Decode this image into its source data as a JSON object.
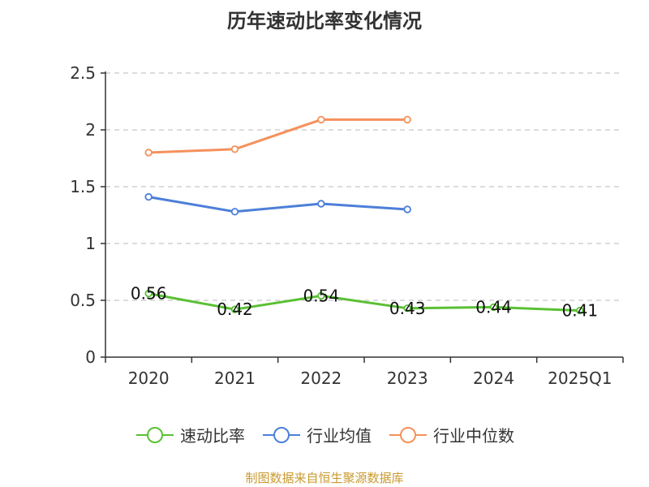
{
  "chart_data": {
    "type": "line",
    "title": "历年速动比率变化情况",
    "xlabel": "",
    "ylabel": "",
    "categories": [
      "2020",
      "2021",
      "2022",
      "2023",
      "2024",
      "2025Q1"
    ],
    "ylim": [
      0,
      2.5
    ],
    "y_ticks": [
      "0",
      "0.5",
      "1",
      "1.5",
      "2",
      "2.5"
    ],
    "grid": true,
    "legend_position": "bottom",
    "series": [
      {
        "name": "速动比率",
        "color": "#5ac034",
        "values": [
          0.56,
          0.42,
          0.54,
          0.43,
          0.44,
          0.41
        ],
        "labels": [
          "0.56",
          "0.42",
          "0.54",
          "0.43",
          "0.44",
          "0.41"
        ]
      },
      {
        "name": "行业均值",
        "color": "#4d7fd9",
        "values": [
          1.41,
          1.28,
          1.35,
          1.3,
          null,
          null
        ]
      },
      {
        "name": "行业中位数",
        "color": "#f5915c",
        "values": [
          1.8,
          1.83,
          2.09,
          2.09,
          null,
          null
        ]
      }
    ]
  },
  "footer": "制图数据来自恒生聚源数据库"
}
